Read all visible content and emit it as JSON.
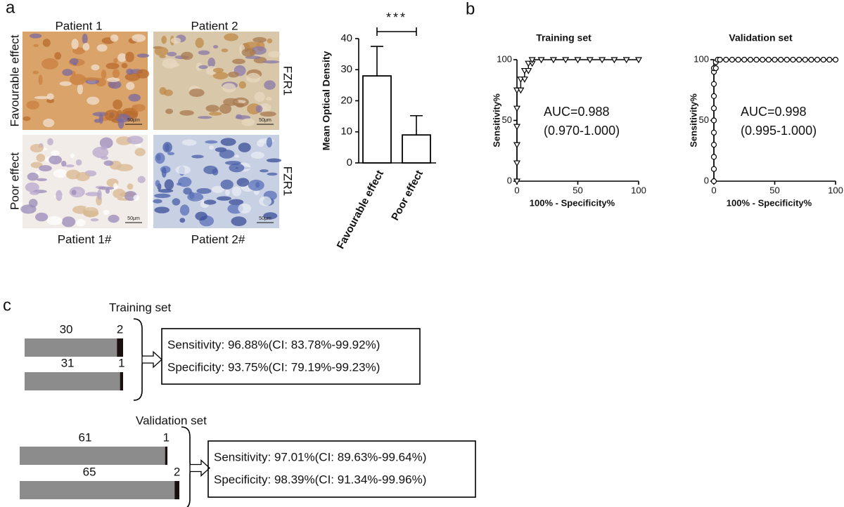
{
  "panel_labels": [
    "a",
    "b",
    "c"
  ],
  "images": {
    "columns": [
      "Patient 1",
      "Patient 2"
    ],
    "bottom": [
      "Patient 1#",
      "Patient 2#"
    ],
    "rows": [
      "Favourable effect",
      "Poor effect"
    ],
    "marker": "FZR1",
    "scale_bar": "50μm"
  },
  "chart_data": [
    {
      "type": "bar",
      "y_label": "Mean Optical Density",
      "categories": [
        "Favourable effect",
        "Poor effect"
      ],
      "values": [
        28,
        9
      ],
      "errors": [
        9.5,
        6.2
      ],
      "color": "#ffffff",
      "ylim": [
        0,
        40
      ],
      "yticks": [
        0,
        10,
        20,
        30,
        40
      ],
      "annotation": "***"
    },
    {
      "type": "line",
      "title": "Training set",
      "x_label": "100% - Specificity%",
      "y_label": "Sensitivity%",
      "marker": "triangle",
      "color": "#000000",
      "x": [
        0,
        0,
        0,
        0,
        0,
        0,
        3.1,
        3.1,
        6.3,
        6.3,
        9.4,
        9.4,
        12.5,
        12.5,
        20,
        30,
        40,
        50,
        60,
        70,
        80,
        90,
        100
      ],
      "series": [
        {
          "values": [
            0,
            15,
            30,
            45,
            60,
            75,
            75,
            84,
            84,
            91,
            91,
            97,
            97,
            100,
            100,
            100,
            100,
            100,
            100,
            100,
            100,
            100,
            100
          ]
        }
      ],
      "xlim": [
        0,
        100
      ],
      "ylim": [
        0,
        100
      ],
      "xticks": [
        0,
        50,
        100
      ],
      "yticks": [
        0,
        50,
        100
      ],
      "annotations": [
        "AUC=0.988",
        "(0.970-1.000)"
      ]
    },
    {
      "type": "line",
      "title": "Validation set",
      "x_label": "100% - Specificity%",
      "y_label": "Sensitivity%",
      "marker": "circle",
      "color": "#000000",
      "x": [
        0,
        0,
        0,
        0,
        0,
        0,
        0,
        0,
        0,
        0,
        0,
        1.6,
        1.6,
        3.2,
        5,
        10,
        15,
        20,
        25,
        30,
        35,
        40,
        45,
        50,
        55,
        60,
        65,
        70,
        75,
        80,
        85,
        90,
        95,
        100
      ],
      "series": [
        {
          "values": [
            0,
            10,
            20,
            30,
            40,
            50,
            60,
            70,
            80,
            90,
            93,
            93,
            98,
            100,
            100,
            100,
            100,
            100,
            100,
            100,
            100,
            100,
            100,
            100,
            100,
            100,
            100,
            100,
            100,
            100,
            100,
            100,
            100,
            100
          ]
        }
      ],
      "xlim": [
        0,
        100
      ],
      "ylim": [
        0,
        100
      ],
      "xticks": [
        0,
        50,
        100
      ],
      "yticks": [
        0,
        50,
        100
      ],
      "annotations": [
        "AUC=0.998",
        "(0.995-1.000)"
      ]
    },
    {
      "type": "hbar_stacked",
      "title": "Training set",
      "categories": [
        null,
        null
      ],
      "series": [
        {
          "color": "#8c8c8c",
          "values": [
            30,
            31
          ]
        },
        {
          "color": "#1a1010",
          "values": [
            2,
            1
          ]
        }
      ],
      "annotations": [
        "Sensitivity: 96.88%(CI: 83.78%-99.92%)",
        "Specificity: 93.75%(CI: 79.19%-99.23%)"
      ]
    },
    {
      "type": "hbar_stacked",
      "title": "Validation set",
      "categories": [
        null,
        null
      ],
      "series": [
        {
          "color": "#8c8c8c",
          "values": [
            61,
            65
          ]
        },
        {
          "color": "#1a1010",
          "values": [
            1,
            2
          ]
        }
      ],
      "annotations": [
        "Sensitivity: 97.01%(CI: 89.63%-99.64%)",
        "Specificity: 98.39%(CI: 91.34%-99.96%)"
      ]
    }
  ]
}
